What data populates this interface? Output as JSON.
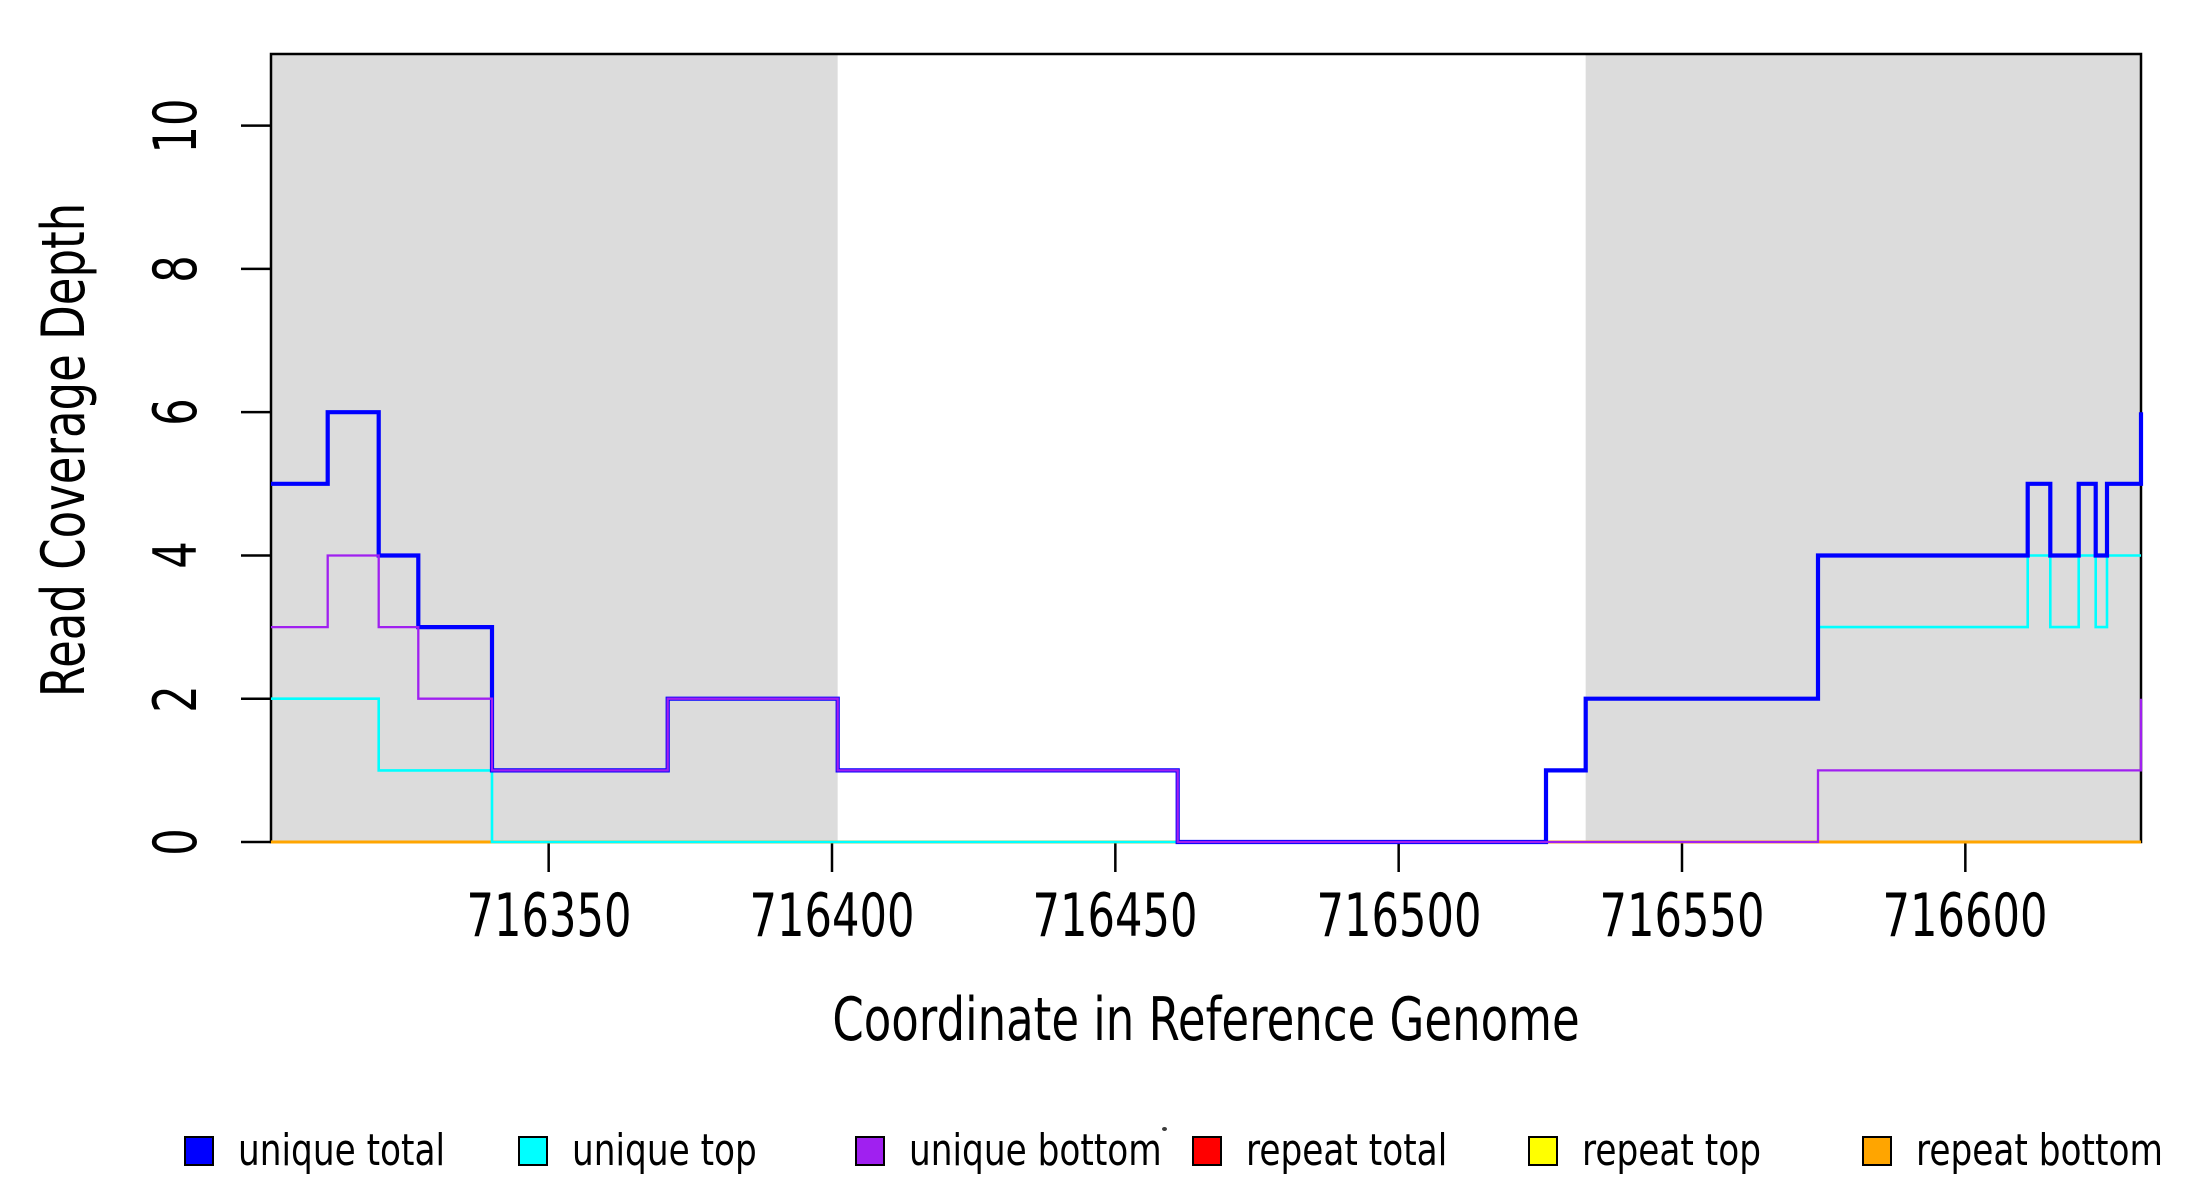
{
  "figure": {
    "xlabel": "Coordinate in Reference Genome",
    "ylabel": "Read Coverage Depth",
    "background_color": "#FFFFFF",
    "shaded_band_color": "#DCDCDC",
    "axis_color": "#000000"
  },
  "chart_data": {
    "type": "line",
    "subtype": "step",
    "title": "",
    "xlabel": "Coordinate in Reference Genome",
    "ylabel": "Read Coverage Depth",
    "xlim": [
      716301,
      716631
    ],
    "ylim": [
      0,
      11
    ],
    "x_ticks": [
      716350,
      716400,
      716450,
      716500,
      716550,
      716600
    ],
    "y_ticks": [
      0,
      2,
      4,
      6,
      8,
      10
    ],
    "grid": false,
    "legend_position": "bottom",
    "shaded_regions": [
      {
        "x0": 716301,
        "x1": 716401,
        "color": "#DCDCDC"
      },
      {
        "x0": 716533,
        "x1": 716631,
        "color": "#DCDCDC"
      }
    ],
    "series": [
      {
        "name": "unique total",
        "color": "#0000FF",
        "width": 4.2,
        "steps": [
          [
            716301,
            5
          ],
          [
            716311,
            6
          ],
          [
            716320,
            4
          ],
          [
            716327,
            3
          ],
          [
            716340,
            1
          ],
          [
            716371,
            2
          ],
          [
            716401,
            1
          ],
          [
            716461,
            0
          ],
          [
            716526,
            1
          ],
          [
            716533,
            2
          ],
          [
            716574,
            4
          ],
          [
            716611,
            5
          ],
          [
            716615,
            4
          ],
          [
            716620,
            5
          ],
          [
            716623,
            4
          ],
          [
            716625,
            5
          ],
          [
            716631,
            6
          ]
        ]
      },
      {
        "name": "unique top",
        "color": "#00FFFF",
        "width": 2.6,
        "steps": [
          [
            716301,
            2
          ],
          [
            716320,
            1
          ],
          [
            716340,
            0
          ],
          [
            716526,
            1
          ],
          [
            716533,
            2
          ],
          [
            716574,
            3
          ],
          [
            716611,
            4
          ],
          [
            716615,
            3
          ],
          [
            716620,
            4
          ],
          [
            716623,
            3
          ],
          [
            716625,
            4
          ]
        ]
      },
      {
        "name": "unique bottom",
        "color": "#A020F0",
        "width": 2.3,
        "steps": [
          [
            716301,
            3
          ],
          [
            716311,
            4
          ],
          [
            716320,
            3
          ],
          [
            716327,
            2
          ],
          [
            716340,
            1
          ],
          [
            716371,
            2
          ],
          [
            716401,
            1
          ],
          [
            716461,
            0
          ],
          [
            716574,
            1
          ],
          [
            716631,
            2
          ]
        ]
      },
      {
        "name": "repeat total",
        "color": "#FF0000",
        "width": 2.6,
        "steps": [
          [
            716301,
            0
          ]
        ]
      },
      {
        "name": "repeat top",
        "color": "#FFFF00",
        "width": 2.6,
        "steps": [
          [
            716301,
            0
          ]
        ]
      },
      {
        "name": "repeat bottom",
        "color": "#FFA500",
        "width": 3.0,
        "steps": [
          [
            716301,
            0
          ]
        ]
      }
    ],
    "draw_order": [
      "repeat total",
      "repeat top",
      "repeat bottom",
      "unique top",
      "unique total",
      "unique bottom"
    ]
  }
}
